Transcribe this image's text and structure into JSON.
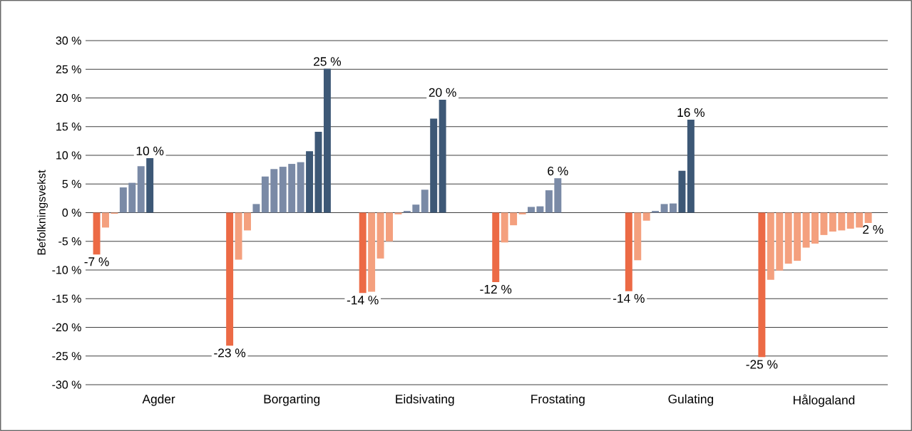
{
  "chart_data": {
    "type": "bar",
    "ylabel": "Befolkningsvekst",
    "categories": [
      null,
      null,
      null,
      null,
      null,
      null,
      null,
      "Agder",
      null,
      null,
      null,
      null,
      null,
      null,
      null,
      null,
      null,
      null,
      null,
      null,
      null,
      null,
      "Borgarting",
      null,
      null,
      null,
      null,
      null,
      null,
      null,
      null,
      null,
      null,
      null,
      null,
      null,
      null,
      "Eidsivating",
      null,
      null,
      null,
      null,
      null,
      null,
      null,
      null,
      null,
      null,
      null,
      null,
      null,
      null,
      "Frostating",
      null,
      null,
      null,
      null,
      null,
      null,
      null,
      null,
      null,
      null,
      null,
      null,
      null,
      null,
      "Gulating",
      null,
      null,
      null,
      null,
      null,
      null,
      null,
      null,
      null,
      null,
      null,
      null,
      null,
      null,
      "Hålogaland",
      null,
      null,
      null,
      null,
      null
    ],
    "values": [
      -7.3,
      -2.6,
      -0.2,
      4.4,
      5.2,
      8.1,
      9.5,
      null,
      null,
      null,
      null,
      null,
      null,
      null,
      null,
      -23.2,
      -8.2,
      -3.1,
      1.5,
      6.3,
      7.6,
      8.0,
      8.5,
      8.8,
      10.7,
      14.1,
      25.1,
      null,
      null,
      null,
      -14.0,
      -13.8,
      -8.0,
      -5.0,
      -0.3,
      0.3,
      1.4,
      4.0,
      16.4,
      19.7,
      null,
      null,
      null,
      null,
      null,
      -12.1,
      -5.2,
      -2.2,
      -0.3,
      1.0,
      1.1,
      3.9,
      6.0,
      null,
      null,
      null,
      null,
      null,
      null,
      null,
      -13.7,
      -8.3,
      -1.4,
      0.3,
      1.5,
      1.6,
      7.3,
      16.2,
      null,
      null,
      null,
      null,
      null,
      null,
      null,
      -25.2,
      -11.7,
      -10.1,
      -8.9,
      -8.4,
      -6.1,
      -5.4,
      -3.9,
      -3.3,
      -3.1,
      -2.8,
      -2.6,
      -1.8
    ],
    "colors": [
      "#ec6a45",
      "#f4a07e",
      "#f4a07e",
      "#7a8aa6",
      "#7a8aa6",
      "#7a8aa6",
      "#3d5876",
      null,
      null,
      null,
      null,
      null,
      null,
      null,
      null,
      "#ec6a45",
      "#f4a07e",
      "#f4a07e",
      "#7a8aa6",
      "#7a8aa6",
      "#7a8aa6",
      "#7a8aa6",
      "#7a8aa6",
      "#7a8aa6",
      "#3d5876",
      "#3d5876",
      "#3d5876",
      null,
      null,
      null,
      "#ec6a45",
      "#f4a07e",
      "#f4a07e",
      "#f4a07e",
      "#f4a07e",
      "#7a8aa6",
      "#7a8aa6",
      "#7a8aa6",
      "#3d5876",
      "#3d5876",
      null,
      null,
      null,
      null,
      null,
      "#ec6a45",
      "#f4a07e",
      "#f4a07e",
      "#f4a07e",
      "#7a8aa6",
      "#7a8aa6",
      "#7a8aa6",
      "#7a8aa6",
      null,
      null,
      null,
      null,
      null,
      null,
      null,
      "#ec6a45",
      "#f4a07e",
      "#f4a07e",
      "#7a8aa6",
      "#7a8aa6",
      "#7a8aa6",
      "#3d5876",
      "#3d5876",
      null,
      null,
      null,
      null,
      null,
      null,
      null,
      "#ec6a45",
      "#f4a07e",
      "#f4a07e",
      "#f4a07e",
      "#f4a07e",
      "#f4a07e",
      "#f4a07e",
      "#f4a07e",
      "#f4a07e",
      "#f4a07e",
      "#f4a07e",
      "#f4a07e",
      "#f4a07e"
    ],
    "value_labels": [
      "-7 %",
      null,
      null,
      null,
      null,
      null,
      "10 %",
      null,
      null,
      null,
      null,
      null,
      null,
      null,
      null,
      "-23 %",
      null,
      null,
      null,
      null,
      null,
      null,
      null,
      null,
      null,
      null,
      "25 %",
      null,
      null,
      null,
      "-14 %",
      null,
      null,
      null,
      null,
      null,
      null,
      null,
      null,
      "20 %",
      null,
      null,
      null,
      null,
      null,
      "-12 %",
      null,
      null,
      null,
      null,
      null,
      null,
      "6 %",
      null,
      null,
      null,
      null,
      null,
      null,
      null,
      "-14 %",
      null,
      null,
      null,
      null,
      null,
      null,
      "16 %",
      null,
      null,
      null,
      null,
      null,
      null,
      null,
      "-25 %",
      null,
      null,
      null,
      null,
      null,
      null,
      null,
      null,
      null,
      null,
      null,
      null
    ],
    "annotations": [
      "2 %"
    ],
    "ylim": [
      -30,
      30
    ],
    "yticks": [
      {
        "value": -30,
        "label": "-30 %"
      },
      {
        "value": -25,
        "label": "-25 %"
      },
      {
        "value": -20,
        "label": "-20 %"
      },
      {
        "value": -15,
        "label": "-15 %"
      },
      {
        "value": -10,
        "label": "-10 %"
      },
      {
        "value": -5,
        "label": "-5 %"
      },
      {
        "value": 0,
        "label": "0 %"
      },
      {
        "value": 5,
        "label": "5 %"
      },
      {
        "value": 10,
        "label": "10 %"
      },
      {
        "value": 15,
        "label": "15 %"
      },
      {
        "value": 20,
        "label": "20 %"
      },
      {
        "value": 25,
        "label": "25 %"
      },
      {
        "value": 30,
        "label": "30 %"
      }
    ],
    "grid": "y"
  }
}
